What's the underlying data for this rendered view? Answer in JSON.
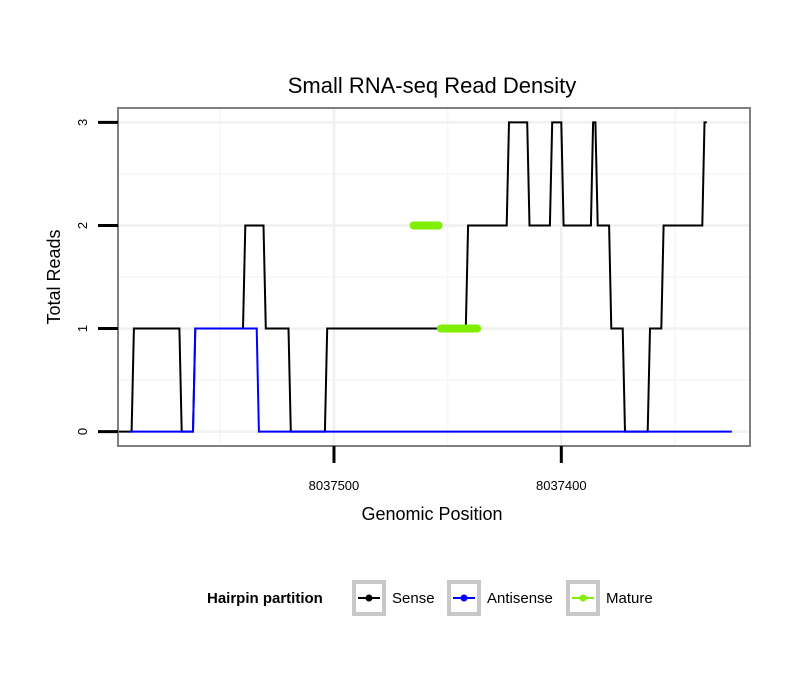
{
  "chart_data": {
    "type": "line",
    "title": "Small RNA-seq Read Density",
    "xlabel": "Genomic Position",
    "ylabel": "Total Reads",
    "x_reversed": true,
    "xlim": [
      8037595,
      8037317
    ],
    "ylim": [
      -0.14,
      3.14
    ],
    "x_ticks": [
      8037500,
      8037400
    ],
    "x_tick_labels": [
      "8037500",
      "8037400"
    ],
    "y_ticks": [
      0,
      1,
      2,
      3
    ],
    "y_tick_labels": [
      "0",
      "1",
      "2",
      "3"
    ],
    "grid": true,
    "legend": {
      "title": "Hairpin partition",
      "placement": "bottom",
      "entries": [
        "Sense",
        "Antisense",
        "Mature"
      ]
    },
    "series": [
      {
        "name": "Sense",
        "color": "#000000",
        "x": [
          8037595,
          8037589,
          8037588,
          8037568,
          8037567,
          8037562,
          8037561,
          8037540,
          8037539,
          8037531,
          8037530,
          8037520,
          8037519,
          8037504,
          8037503,
          8037442,
          8037441,
          8037424,
          8037423,
          8037415,
          8037414,
          8037405,
          8037404,
          8037400,
          8037399,
          8037387,
          8037386,
          8037385,
          8037384,
          8037379,
          8037378,
          8037373,
          8037372,
          8037362,
          8037361,
          8037356,
          8037355,
          8037338,
          8037337,
          8037336
        ],
        "values": [
          0,
          0,
          1,
          1,
          0,
          0,
          1,
          1,
          2,
          2,
          1,
          1,
          0,
          0,
          1,
          1,
          2,
          2,
          3,
          3,
          2,
          2,
          3,
          3,
          2,
          2,
          3,
          3,
          2,
          2,
          1,
          1,
          0,
          0,
          1,
          1,
          2,
          2,
          3,
          3
        ]
      },
      {
        "name": "Antisense",
        "color": "#0000ff",
        "x": [
          8037590,
          8037562,
          8037561,
          8037534,
          8037533,
          8037325
        ],
        "values": [
          0,
          0,
          1,
          1,
          0,
          0
        ]
      },
      {
        "name": "Mature",
        "color": "#80ee00",
        "segments": [
          {
            "x": [
              8037465,
              8037454
            ],
            "values": [
              2,
              2
            ]
          },
          {
            "x": [
              8037453,
              8037437
            ],
            "values": [
              1,
              1
            ]
          }
        ]
      }
    ]
  }
}
